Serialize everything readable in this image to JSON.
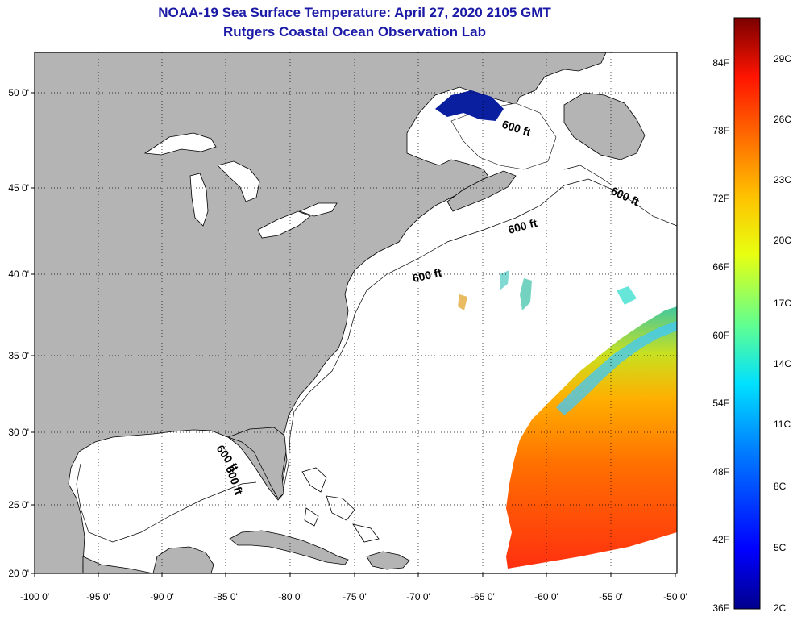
{
  "title": {
    "line1": "NOAA-19 Sea Surface Temperature:  April 27, 2020 2105 GMT",
    "line2": "Rutgers Coastal Ocean Observation Lab"
  },
  "map": {
    "latitude_labels": [
      "50 0'",
      "45 0'",
      "40 0'",
      "35 0'",
      "30 0'",
      "25 0'",
      "20 0'"
    ],
    "longitude_labels": [
      "-100 0'",
      "-95 0'",
      "-90 0'",
      "-85 0'",
      "-80 0'",
      "-75 0'",
      "-70 0'",
      "-65 0'",
      "-60 0'",
      "-55 0'",
      "-50 0'"
    ],
    "isobath_labels": [
      "600 ft",
      "600 ft",
      "600 ft",
      "600 ft",
      "600 ft",
      "600 ft"
    ],
    "land_color": "#b4b4b4",
    "water_color": "#ffffff"
  },
  "colorbar": {
    "fahrenheit_labels": [
      "84F",
      "78F",
      "72F",
      "66F",
      "60F",
      "54F",
      "48F",
      "42F",
      "36F"
    ],
    "celsius_labels": [
      "29C",
      "26C",
      "23C",
      "20C",
      "17C",
      "14C",
      "11C",
      "8C",
      "5C",
      "2C"
    ]
  }
}
